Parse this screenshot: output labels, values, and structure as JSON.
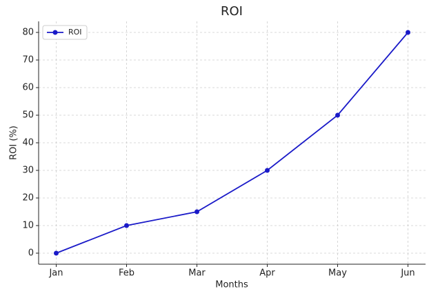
{
  "chart_data": {
    "type": "line",
    "title": "ROI",
    "x_label": "Months",
    "y_label": "ROI (%)",
    "categories": [
      "Jan",
      "Feb",
      "Mar",
      "Apr",
      "May",
      "Jun"
    ],
    "series": [
      {
        "name": "ROI",
        "color": "#1a1ac8",
        "values": [
          0,
          10,
          15,
          30,
          50,
          80
        ]
      }
    ],
    "ylim": [
      -4,
      84
    ],
    "yticks": [
      0,
      10,
      20,
      30,
      40,
      50,
      60,
      70,
      80
    ],
    "grid": true,
    "legend": "upper-left"
  }
}
